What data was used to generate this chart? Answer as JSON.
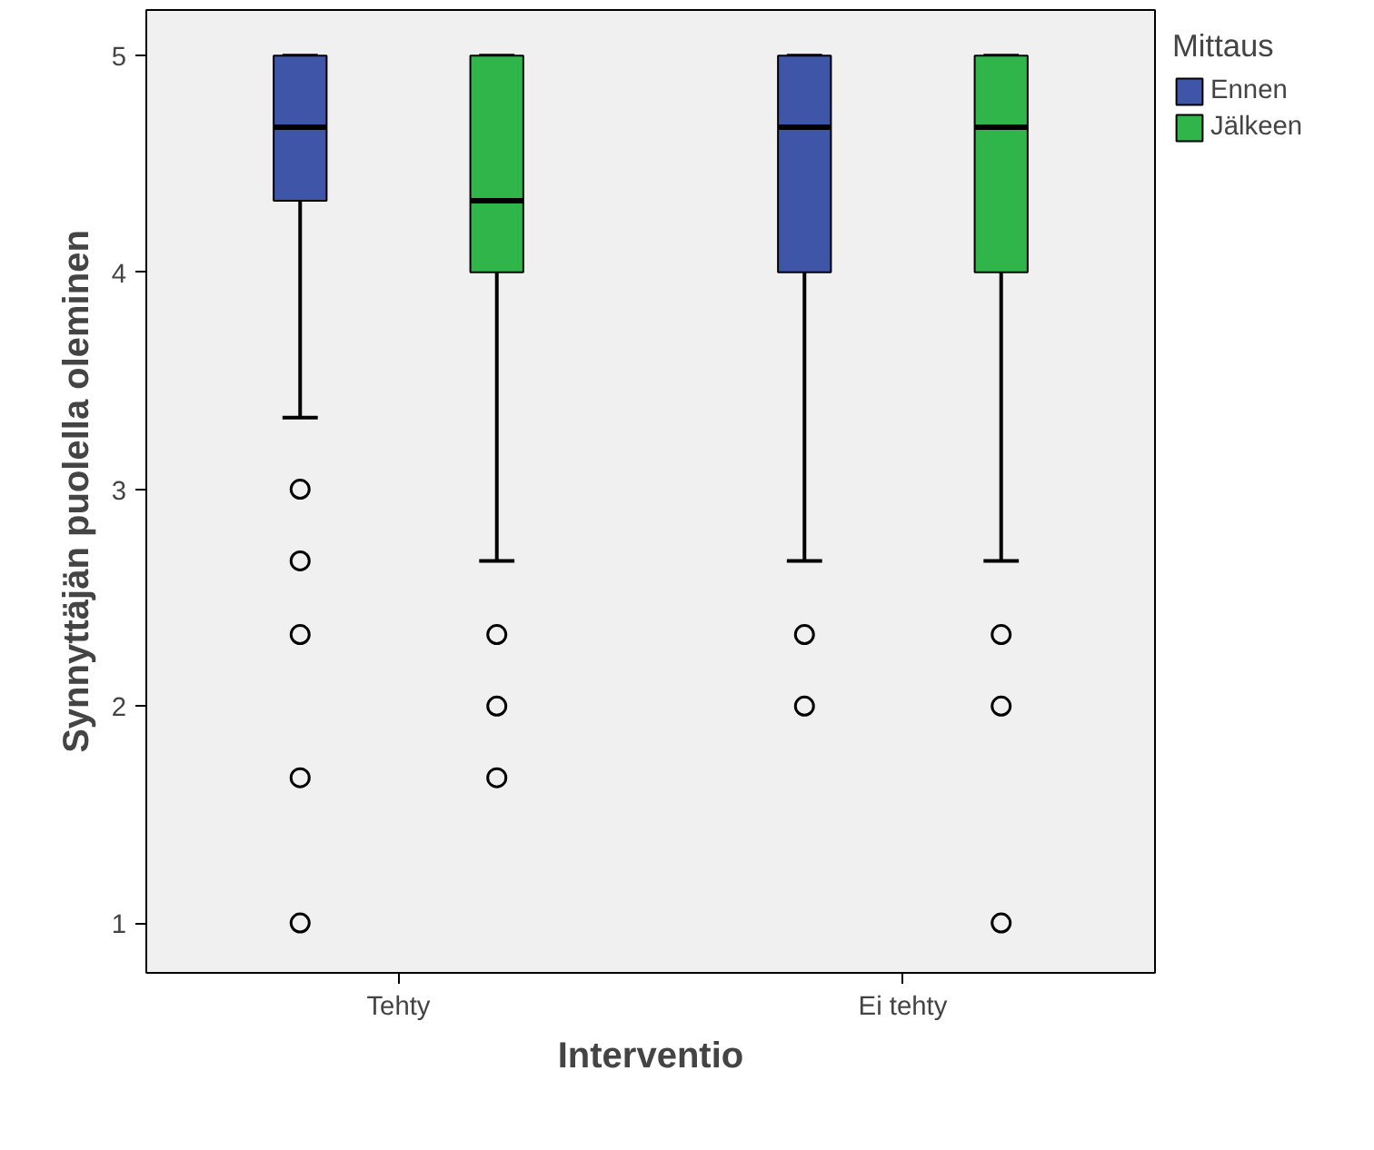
{
  "chart_data": {
    "type": "box",
    "xlabel": "Interventio",
    "ylabel": "Synnyttäjän puolella oleminen",
    "legend_title": "Mittaus",
    "legend": "top right",
    "grid": false,
    "categories": [
      "Tehty",
      "Ei tehty"
    ],
    "ylim": [
      0.77,
      5.21
    ],
    "yticks": [
      1,
      2,
      3,
      4,
      5
    ],
    "series": [
      {
        "name": "Ennen",
        "color": "#3e55a8",
        "boxes": [
          {
            "low": 3.33,
            "q1": 4.33,
            "median": 4.67,
            "q3": 5,
            "high": 5,
            "outliers": [
              3,
              2.67,
              2.33,
              1.67,
              1
            ]
          },
          {
            "low": 2.67,
            "q1": 4,
            "median": 4.67,
            "q3": 5,
            "high": 5,
            "outliers": [
              2.33,
              2
            ]
          }
        ]
      },
      {
        "name": "Jälkeen",
        "color": "#2fb54a",
        "boxes": [
          {
            "low": 2.67,
            "q1": 4,
            "median": 4.33,
            "q3": 5,
            "high": 5,
            "outliers": [
              2.33,
              2,
              1.67
            ]
          },
          {
            "low": 2.67,
            "q1": 4,
            "median": 4.67,
            "q3": 5,
            "high": 5,
            "outliers": [
              2.33,
              2,
              1
            ]
          }
        ]
      }
    ]
  }
}
